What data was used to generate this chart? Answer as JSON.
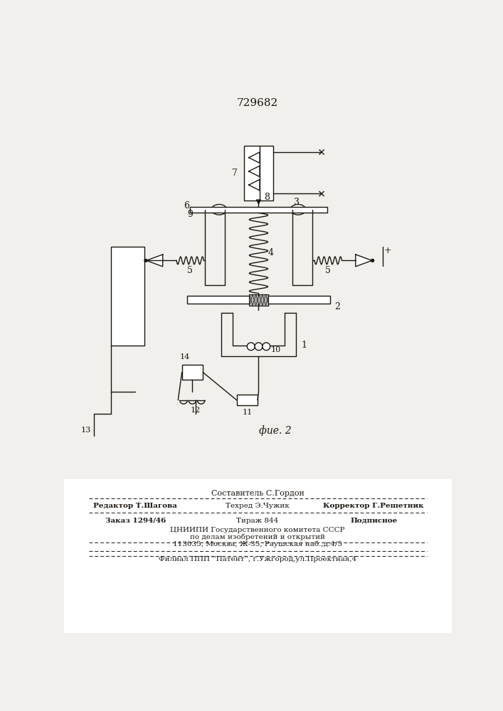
{
  "patent_number": "729682",
  "figure_label": "фие. 2",
  "bg_color": "#f2f0ed",
  "line_color": "#1a1510",
  "footer": {
    "comp": "Составитель С.Гордон",
    "ed": "Редактор Т.Шагова",
    "tech": "Техред Э.Чужик",
    "corr": "Корректор Г.Решетник",
    "order": "Заказ 1294/46",
    "circ": "Тираж 844",
    "sub": "Подписное",
    "cniip": "ЦНИИПИ Государственного комитета СССР",
    "affairs": "по делам изобретений и открытий",
    "addr": "113035, Москва, Ж-35, Раушская наб.,д.4/5",
    "filial": "Филиал ППП ''Патент'', г.Ужгород,ул.Проектная,4"
  }
}
